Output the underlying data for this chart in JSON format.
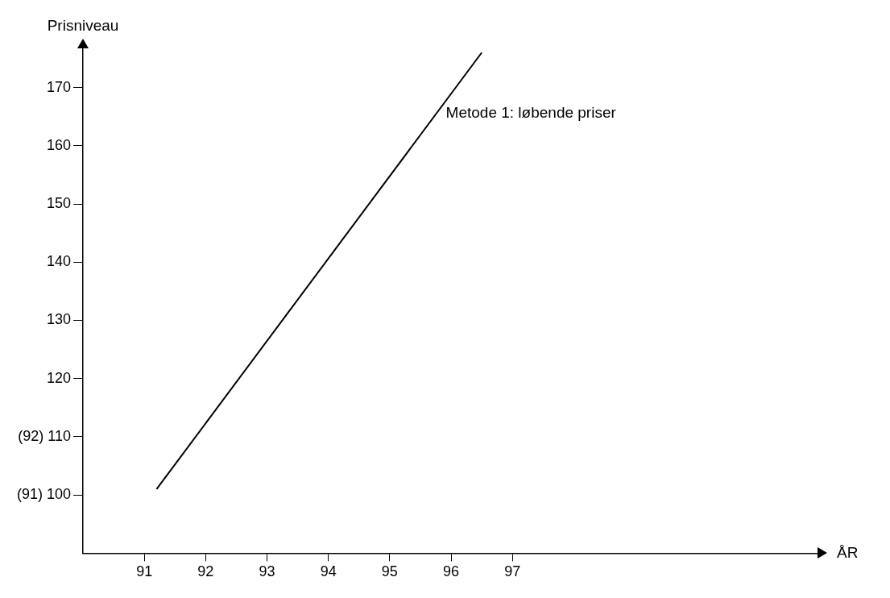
{
  "chart_data": {
    "type": "line",
    "xlabel": "ÅR",
    "ylabel": "Prisniveau",
    "xlim": [
      90,
      102
    ],
    "xticks": [
      91,
      92,
      93,
      94,
      95,
      96,
      97
    ],
    "ylim": [
      90,
      177
    ],
    "yticks": [
      {
        "value": 100,
        "label": "(91) 100"
      },
      {
        "value": 110,
        "label": "(92) 110"
      },
      120,
      130,
      140,
      150,
      160,
      170
    ],
    "grid": false,
    "legend": false,
    "marker": "none",
    "line_style": "solid",
    "series": [
      {
        "name": "Metode 1: løbende priser",
        "color": "#000000",
        "x": [
          91.2,
          96.5
        ],
        "values": [
          101,
          176
        ]
      }
    ]
  }
}
